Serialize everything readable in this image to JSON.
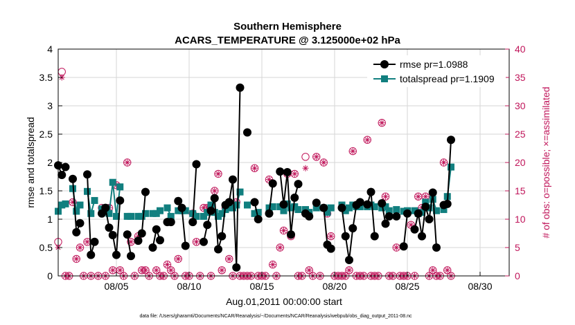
{
  "chart_data": {
    "type": "line",
    "title": "Southern Hemisphere",
    "subtitle": "ACARS_TEMPERATURE @ 3.125000e+02 hPa",
    "xlabel": "Aug.01,2011 00:00:00 start",
    "ylabel": "rmse and totalspread",
    "y2label": "# of obs: o=possible; ×=assimilated",
    "footnote": "data file: /Users/gharamti/Documents/NCAR/Reanalysis/~/Documents/NCAR/Reanalysis/webpub/obs_diag_output_2011-08.nc",
    "xlim": [
      1,
      32
    ],
    "ylim": [
      0,
      4
    ],
    "y2lim": [
      0,
      40
    ],
    "xticks": [
      5,
      10,
      15,
      20,
      25,
      30
    ],
    "xtick_labels": [
      "08/05",
      "08/10",
      "08/15",
      "08/20",
      "08/25",
      "08/30"
    ],
    "yticks": [
      0,
      0.5,
      1,
      1.5,
      2,
      2.5,
      3,
      3.5,
      4
    ],
    "ytick_labels": [
      "0",
      "0.5",
      "1",
      "1.5",
      "2",
      "2.5",
      "3",
      "3.5",
      "4"
    ],
    "y2ticks": [
      0,
      5,
      10,
      15,
      20,
      25,
      30,
      35,
      40
    ],
    "y2tick_labels": [
      "0",
      "5",
      "10",
      "15",
      "20",
      "25",
      "30",
      "35",
      "40"
    ],
    "grid": true,
    "legend_position": "top-right",
    "colors": {
      "rmse": "#000000",
      "spread": "#117f7f",
      "obs": "#c0155a"
    },
    "x_step": 0.25,
    "series": [
      {
        "name": "rmse pr=1.0988",
        "values": [
          1.95,
          1.78,
          1.92,
          null,
          1.71,
          0.77,
          0.93,
          null,
          1.79,
          0.37,
          0.6,
          null,
          1.1,
          1.2,
          0.85,
          0.72,
          0.37,
          1.33,
          null,
          0.73,
          0.35,
          null,
          0.62,
          0.75,
          1.48,
          null,
          0.5,
          0.82,
          0.63,
          null,
          0.95,
          0.95,
          null,
          1.32,
          1.2,
          0.53,
          null,
          0.95,
          1.97,
          null,
          0.6,
          0.9,
          1.15,
          1.37,
          0.47,
          0.7,
          1.25,
          1.3,
          1.7,
          0.15,
          3.32,
          null,
          2.53,
          null,
          1.3,
          1.0,
          null,
          null,
          1.1,
          1.63,
          null,
          1.84,
          1.26,
          1.83,
          0.73,
          1.38,
          1.62,
          null,
          1.1,
          1.05,
          null,
          1.29,
          null,
          1.2,
          0.55,
          0.48,
          null,
          null,
          1.2,
          0.7,
          0.28,
          0.84,
          1.25,
          1.3,
          null,
          1.26,
          1.48,
          0.7,
          null,
          1.28,
          0.92,
          1.05,
          null,
          1.05,
          null,
          0.52,
          1.1,
          null,
          0.82,
          1.1,
          0.7,
          1.22,
          1.0,
          1.47,
          0.5,
          null,
          1.25,
          1.27,
          2.4
        ]
      },
      {
        "name": "totalspread pr=1.1909",
        "values": [
          1.14,
          1.25,
          1.27,
          null,
          1.54,
          1.14,
          1.25,
          null,
          1.49,
          1.1,
          1.33,
          null,
          1.18,
          1.2,
          1.1,
          1.65,
          1.05,
          1.57,
          null,
          1.05,
          1.05,
          null,
          1.05,
          1.05,
          1.1,
          null,
          1.1,
          1.1,
          1.15,
          null,
          1.2,
          1.05,
          null,
          1.15,
          1.15,
          1.15,
          null,
          1.1,
          1.05,
          null,
          1.05,
          1.12,
          1.25,
          1.12,
          1.05,
          1.1,
          1.17,
          1.2,
          1.2,
          1.25,
          1.48,
          null,
          1.25,
          null,
          1.1,
          1.12,
          null,
          null,
          1.2,
          1.22,
          null,
          1.22,
          1.15,
          1.27,
          1.2,
          1.22,
          1.17,
          null,
          1.17,
          1.12,
          null,
          1.2,
          null,
          1.2,
          1.12,
          1.2,
          null,
          null,
          1.25,
          1.15,
          1.2,
          1.25,
          1.22,
          1.22,
          null,
          1.22,
          1.25,
          1.22,
          null,
          1.2,
          1.22,
          1.15,
          null,
          1.17,
          null,
          1.14,
          1.15,
          null,
          1.15,
          1.1,
          1.12,
          1.3,
          1.2,
          1.35,
          1.15,
          null,
          1.17,
          1.4,
          1.92
        ]
      },
      {
        "name": "obs possible",
        "axis": "right",
        "values": [
          6,
          36,
          0,
          0,
          13,
          3,
          5,
          0,
          6,
          0,
          6,
          0,
          12,
          0,
          12,
          1,
          16,
          1,
          0,
          20,
          6,
          0,
          7,
          1,
          1,
          0,
          5,
          1,
          0,
          0,
          2,
          1,
          0,
          3,
          12,
          0,
          0,
          11,
          6,
          0,
          12,
          12,
          0,
          15,
          18,
          1,
          12,
          3,
          0,
          13,
          0,
          0,
          0,
          0,
          19,
          0,
          0,
          0,
          17,
          2,
          0,
          5,
          8,
          18,
          7,
          18,
          0,
          0,
          21,
          1,
          0,
          21,
          0,
          20,
          11,
          7,
          0,
          0,
          0,
          0,
          1,
          22,
          0,
          0,
          0,
          24,
          0,
          0,
          0,
          27,
          14,
          0,
          0,
          5,
          0,
          0,
          0,
          9,
          0,
          14,
          12,
          14,
          0,
          1,
          0,
          0,
          20,
          1,
          0
        ]
      },
      {
        "name": "obs assimilated",
        "axis": "right",
        "values": [
          5,
          35,
          0,
          0,
          13,
          3,
          5,
          0,
          6,
          0,
          6,
          0,
          12,
          0,
          12,
          1,
          16,
          1,
          0,
          20,
          6,
          0,
          7,
          1,
          1,
          0,
          5,
          1,
          0,
          0,
          2,
          1,
          0,
          3,
          12,
          0,
          0,
          11,
          6,
          0,
          12,
          12,
          0,
          15,
          18,
          1,
          12,
          3,
          0,
          13,
          0,
          0,
          0,
          0,
          19,
          0,
          0,
          0,
          17,
          2,
          0,
          5,
          8,
          18,
          7,
          18,
          0,
          0,
          19,
          1,
          0,
          21,
          0,
          20,
          11,
          7,
          0,
          0,
          0,
          0,
          1,
          22,
          0,
          0,
          0,
          24,
          0,
          0,
          0,
          27,
          14,
          0,
          0,
          5,
          0,
          0,
          0,
          9,
          0,
          14,
          12,
          14,
          0,
          1,
          0,
          0,
          20,
          1,
          0
        ]
      }
    ]
  }
}
